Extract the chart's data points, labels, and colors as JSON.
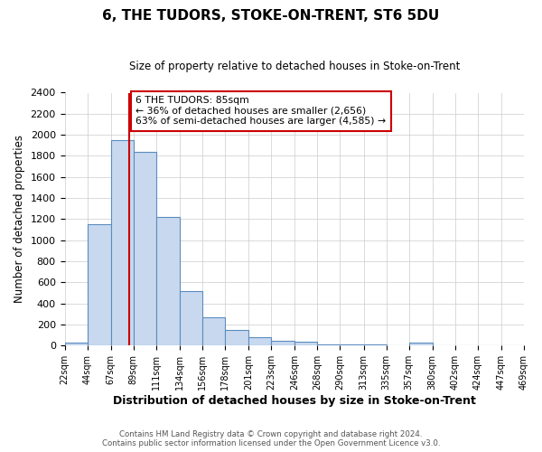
{
  "title": "6, THE TUDORS, STOKE-ON-TRENT, ST6 5DU",
  "subtitle": "Size of property relative to detached houses in Stoke-on-Trent",
  "xlabel": "Distribution of detached houses by size in Stoke-on-Trent",
  "ylabel": "Number of detached properties",
  "bar_edges": [
    22,
    44,
    67,
    89,
    111,
    134,
    156,
    178,
    201,
    223,
    246,
    268,
    290,
    313,
    335,
    357,
    380,
    402,
    424,
    447,
    469
  ],
  "bar_heights": [
    25,
    1155,
    1950,
    1840,
    1220,
    520,
    265,
    150,
    80,
    50,
    40,
    15,
    10,
    10,
    5,
    30,
    5,
    5,
    5,
    5
  ],
  "bar_color": "#c8d9ef",
  "bar_edge_color": "#5b8cbf",
  "vline_x": 85,
  "vline_color": "#cc0000",
  "ylim": [
    0,
    2400
  ],
  "yticks": [
    0,
    200,
    400,
    600,
    800,
    1000,
    1200,
    1400,
    1600,
    1800,
    2000,
    2200,
    2400
  ],
  "annotation_line1": "6 THE TUDORS: 85sqm",
  "annotation_line2": "← 36% of detached houses are smaller (2,656)",
  "annotation_line3": "63% of semi-detached houses are larger (4,585) →",
  "annotation_box_color": "#cc0000",
  "footer_line1": "Contains HM Land Registry data © Crown copyright and database right 2024.",
  "footer_line2": "Contains public sector information licensed under the Open Government Licence v3.0.",
  "bg_color": "#ffffff",
  "grid_color": "#cccccc",
  "tick_labels": [
    "22sqm",
    "44sqm",
    "67sqm",
    "89sqm",
    "111sqm",
    "134sqm",
    "156sqm",
    "178sqm",
    "201sqm",
    "223sqm",
    "246sqm",
    "268sqm",
    "290sqm",
    "313sqm",
    "335sqm",
    "357sqm",
    "380sqm",
    "402sqm",
    "424sqm",
    "447sqm",
    "469sqm"
  ]
}
